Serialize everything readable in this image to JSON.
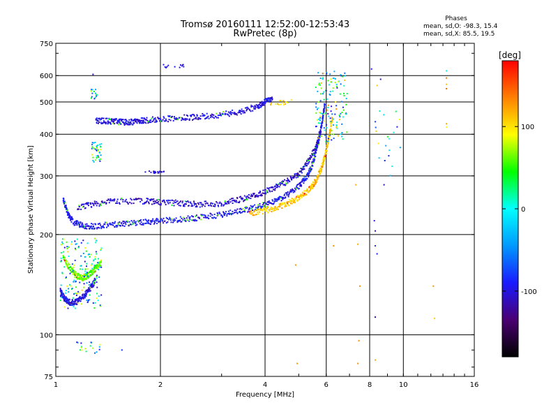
{
  "header": {
    "title": "Tromsø 20160111 12:52:00-12:53:43",
    "subtitle": "RwPretec (8p)"
  },
  "stats": {
    "title": "Phases",
    "line_o": "mean, sd,O: -98.3, 15.4",
    "line_x": "mean, sd,X:  85.5, 19.5"
  },
  "colorbar": {
    "title": "[deg]",
    "ticks": [
      {
        "value": 100,
        "label": "100"
      },
      {
        "value": 0,
        "label": "0"
      },
      {
        "value": -100,
        "label": "-100"
      }
    ],
    "min": -180,
    "max": 180,
    "colormap": [
      "#000000",
      "#4a0072",
      "#1a1aff",
      "#0099ff",
      "#00ffff",
      "#00ff00",
      "#ffff00",
      "#ff8000",
      "#ff0000"
    ]
  },
  "chart_data": {
    "type": "scatter",
    "xlabel": "Frequency [MHz]",
    "ylabel": "Stationary phase Virtual Height [km]",
    "xscale": "log",
    "yscale": "log",
    "xlim": [
      1,
      16
    ],
    "ylim": [
      75,
      750
    ],
    "xticks": [
      1,
      2,
      4,
      6,
      8,
      10,
      16
    ],
    "yticks": [
      75,
      100,
      200,
      300,
      400,
      500,
      600,
      750
    ],
    "xgrid": [
      2,
      4,
      6,
      8,
      10
    ],
    "ygrid": [
      100,
      200,
      300,
      400,
      500,
      600
    ],
    "color_variable": "phase [deg]",
    "traces": [
      {
        "x": [
          1.05,
          1.08,
          1.12,
          1.2,
          1.3,
          1.45,
          1.6,
          1.8,
          2.0,
          2.3,
          2.6,
          3.0,
          3.4,
          3.8,
          4.2,
          4.6,
          5.0,
          5.3,
          5.5,
          5.7,
          5.85,
          5.95
        ],
        "y": [
          255,
          232,
          218,
          212,
          212,
          214,
          216,
          218,
          220,
          222,
          225,
          230,
          236,
          242,
          250,
          262,
          280,
          300,
          330,
          380,
          440,
          500
        ],
        "phase": -95
      },
      {
        "x": [
          1.15,
          1.3,
          1.5,
          1.8,
          2.0,
          2.3,
          2.6,
          3.0,
          3.4,
          3.8,
          4.2,
          4.6,
          5.0,
          5.3,
          5.6,
          5.8
        ],
        "y": [
          240,
          248,
          252,
          252,
          250,
          248,
          246,
          248,
          255,
          264,
          275,
          288,
          305,
          330,
          365,
          420
        ],
        "phase": -105
      },
      {
        "x": [
          3.6,
          4.0,
          4.4,
          4.8,
          5.1,
          5.4,
          5.6,
          5.8,
          5.95,
          6.1,
          6.25
        ],
        "y": [
          232,
          236,
          243,
          252,
          262,
          275,
          290,
          315,
          345,
          390,
          450
        ],
        "phase": 110
      },
      {
        "x": [
          1.3,
          1.4,
          1.5,
          1.6,
          1.7,
          1.8,
          2.0,
          2.3,
          2.6,
          3.0,
          3.4,
          3.8,
          4.0,
          4.2
        ],
        "y": [
          440,
          438,
          436,
          434,
          436,
          440,
          444,
          448,
          452,
          458,
          468,
          485,
          500,
          512
        ],
        "phase": -100
      },
      {
        "x": [
          1.03,
          1.06,
          1.1,
          1.15,
          1.2,
          1.25,
          1.3
        ],
        "y": [
          135,
          128,
          125,
          126,
          130,
          137,
          146
        ],
        "phase": -100
      },
      {
        "x": [
          1.05,
          1.1,
          1.15,
          1.2,
          1.25,
          1.3,
          1.35
        ],
        "y": [
          170,
          158,
          150,
          148,
          152,
          158,
          165
        ],
        "phase": 60
      }
    ],
    "clusters": [
      {
        "x": [
          1.03,
          1.36
        ],
        "y": [
          120,
          195
        ],
        "n": 170,
        "phase": [
          -110,
          110
        ]
      },
      {
        "x": [
          1.27,
          1.36
        ],
        "y": [
          330,
          380
        ],
        "n": 40,
        "phase": [
          -110,
          100
        ]
      },
      {
        "x": [
          1.26,
          1.32
        ],
        "y": [
          510,
          545
        ],
        "n": 15,
        "phase": [
          -100,
          90
        ]
      },
      {
        "x": [
          1.8,
          2.05
        ],
        "y": [
          305,
          310
        ],
        "n": 18,
        "phase": [
          -110,
          -90
        ]
      },
      {
        "x": [
          2.0,
          2.35
        ],
        "y": [
          630,
          650
        ],
        "n": 12,
        "phase": [
          -105,
          -90
        ]
      },
      {
        "x": [
          4.0,
          4.8
        ],
        "y": [
          490,
          510
        ],
        "n": 15,
        "phase": [
          80,
          120
        ]
      },
      {
        "x": [
          5.6,
          6.9
        ],
        "y": [
          380,
          620
        ],
        "n": 140,
        "phase": [
          -110,
          130
        ]
      },
      {
        "x": [
          1.15,
          1.35
        ],
        "y": [
          88,
          95
        ],
        "n": 18,
        "phase": [
          -100,
          100
        ]
      },
      {
        "x": [
          8.3,
          9.8
        ],
        "y": [
          300,
          470
        ],
        "n": 20,
        "phase": [
          -100,
          110
        ]
      }
    ],
    "scattered_points": [
      {
        "x": 1.28,
        "y": 605,
        "phase": -100
      },
      {
        "x": 1.55,
        "y": 90,
        "phase": -80
      },
      {
        "x": 4.9,
        "y": 162,
        "phase": 130
      },
      {
        "x": 4.95,
        "y": 82,
        "phase": 130
      },
      {
        "x": 6.3,
        "y": 185,
        "phase": 130
      },
      {
        "x": 7.4,
        "y": 187,
        "phase": 120
      },
      {
        "x": 7.5,
        "y": 140,
        "phase": 130
      },
      {
        "x": 7.45,
        "y": 96,
        "phase": 130
      },
      {
        "x": 7.4,
        "y": 82,
        "phase": 130
      },
      {
        "x": 7.3,
        "y": 282,
        "phase": 120
      },
      {
        "x": 8.3,
        "y": 185,
        "phase": -80
      },
      {
        "x": 8.4,
        "y": 175,
        "phase": -90
      },
      {
        "x": 8.3,
        "y": 205,
        "phase": -100
      },
      {
        "x": 8.25,
        "y": 220,
        "phase": -100
      },
      {
        "x": 8.3,
        "y": 113,
        "phase": -110
      },
      {
        "x": 8.3,
        "y": 84,
        "phase": 120
      },
      {
        "x": 8.1,
        "y": 628,
        "phase": -100
      },
      {
        "x": 8.4,
        "y": 560,
        "phase": 110
      },
      {
        "x": 8.6,
        "y": 585,
        "phase": -110
      },
      {
        "x": 8.8,
        "y": 282,
        "phase": -110
      },
      {
        "x": 12.2,
        "y": 140,
        "phase": 130
      },
      {
        "x": 12.3,
        "y": 112,
        "phase": 110
      },
      {
        "x": 13.3,
        "y": 620,
        "phase": 0
      },
      {
        "x": 13.3,
        "y": 590,
        "phase": 140
      },
      {
        "x": 13.3,
        "y": 565,
        "phase": 110
      },
      {
        "x": 13.3,
        "y": 548,
        "phase": 140
      },
      {
        "x": 13.3,
        "y": 430,
        "phase": 120
      },
      {
        "x": 13.3,
        "y": 420,
        "phase": 90
      }
    ]
  }
}
